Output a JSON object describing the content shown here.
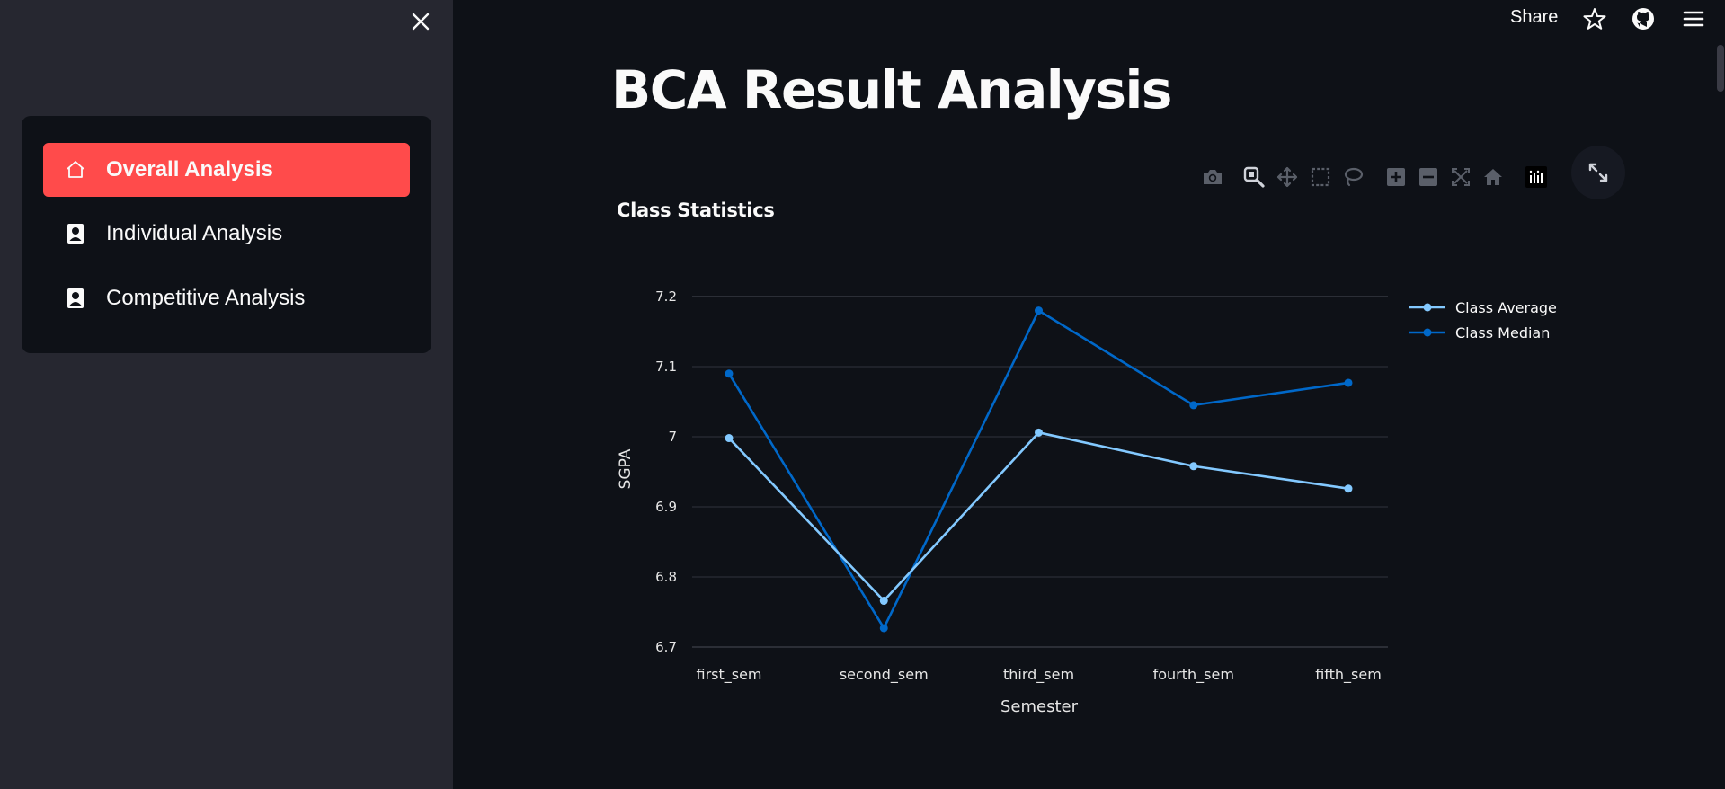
{
  "sidebar": {
    "items": [
      {
        "label": "Overall Analysis",
        "icon": "house-icon",
        "active": true
      },
      {
        "label": "Individual Analysis",
        "icon": "person-badge-icon",
        "active": false
      },
      {
        "label": "Competitive Analysis",
        "icon": "person-badge-icon",
        "active": false
      }
    ]
  },
  "header": {
    "share_label": "Share"
  },
  "main": {
    "title": "BCA Result Analysis"
  },
  "colors": {
    "accent": "#ff4b4b",
    "class_average": "#83c9ff",
    "class_median": "#0068c9",
    "background": "#0e1117",
    "sidebar": "#262730"
  },
  "chart_data": {
    "type": "line",
    "title": "Class Statistics",
    "xlabel": "Semester",
    "ylabel": "SGPA",
    "categories": [
      "first_sem",
      "second_sem",
      "third_sem",
      "fourth_sem",
      "fifth_sem"
    ],
    "series": [
      {
        "name": "Class Average",
        "values": [
          6.998,
          6.766,
          7.006,
          6.958,
          6.926
        ]
      },
      {
        "name": "Class Median",
        "values": [
          7.09,
          6.727,
          7.18,
          7.045,
          7.077
        ]
      }
    ],
    "ylim": [
      6.7,
      7.2
    ],
    "yticks": [
      "6.7",
      "6.8",
      "6.9",
      "7",
      "7.1",
      "7.2"
    ],
    "grid": true,
    "legend_position": "top-right"
  }
}
